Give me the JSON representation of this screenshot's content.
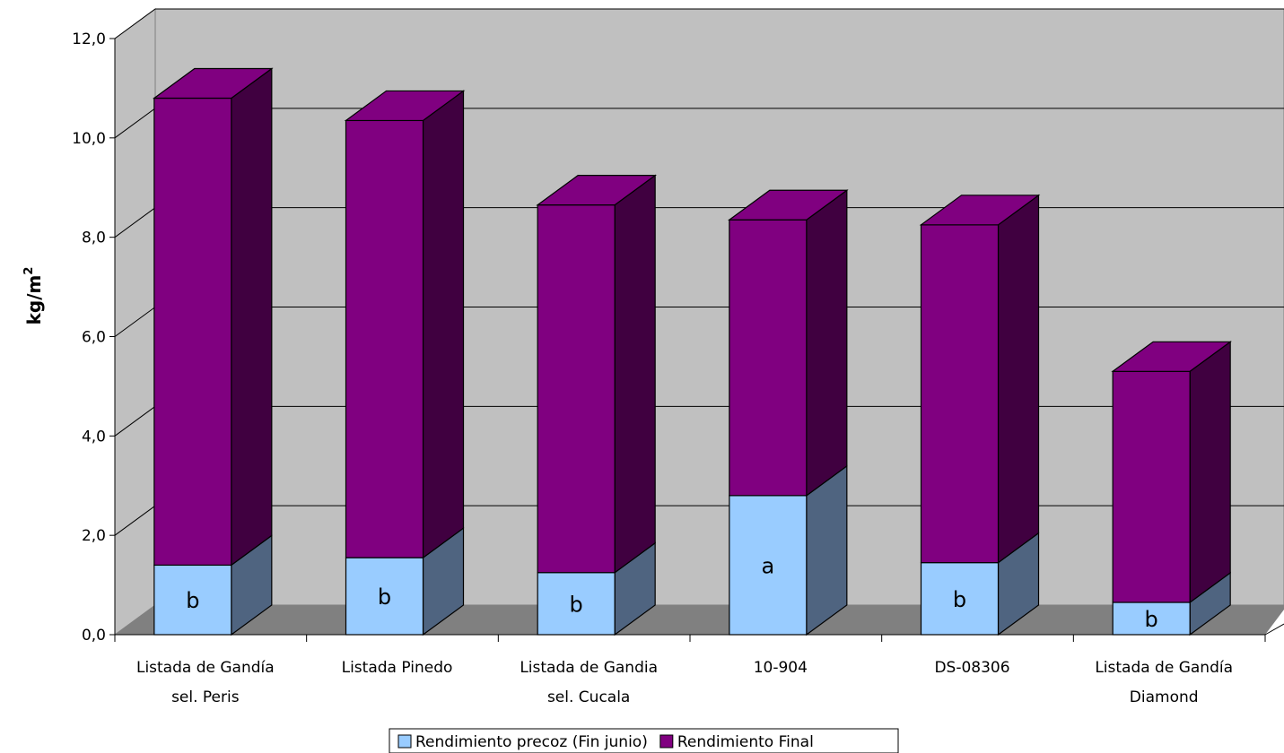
{
  "chart_data": {
    "type": "bar",
    "stacked": true,
    "three_d": true,
    "ylabel": "kg/m",
    "ylabel_superscript": "2",
    "ylim": [
      0,
      12
    ],
    "yticks": [
      "0,0",
      "2,0",
      "4,0",
      "6,0",
      "8,0",
      "10,0",
      "12,0"
    ],
    "categories": [
      [
        "Listada de Gandía",
        "sel. Peris"
      ],
      [
        "Listada Pinedo"
      ],
      [
        "Listada de Gandia",
        "sel. Cucala"
      ],
      [
        "10-904"
      ],
      [
        "DS-08306"
      ],
      [
        "Listada de Gandía",
        "Diamond"
      ]
    ],
    "series": [
      {
        "name": "Rendimiento precoz (Fin junio)",
        "values": [
          1.4,
          1.55,
          1.25,
          2.8,
          1.45,
          0.65
        ],
        "color": "#99ccff",
        "side_color": "#4f6480"
      },
      {
        "name": "Rendimiento Final",
        "values": [
          9.4,
          8.8,
          7.4,
          5.55,
          6.8,
          4.65
        ],
        "color": "#800080",
        "side_color": "#400040"
      }
    ],
    "significance_letters": [
      "b",
      "b",
      "b",
      "a",
      "b",
      "b"
    ],
    "grid": true,
    "legend": "bottom",
    "wall_color": "#c0c0c0",
    "floor_color": "#808080"
  }
}
